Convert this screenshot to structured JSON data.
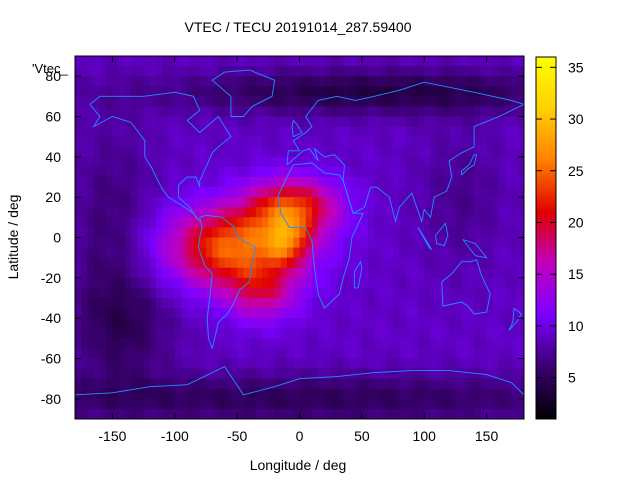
{
  "chart_data": {
    "type": "heatmap",
    "title": "VTEC / TECU 20191014_287.59400",
    "xlabel": "Longitude / deg",
    "ylabel": "Latitude / deg",
    "legend_label": "'Vtec_",
    "xlim": [
      -180,
      180
    ],
    "ylim": [
      -90,
      90
    ],
    "x_ticks": [
      -150,
      -100,
      -50,
      0,
      50,
      100,
      150
    ],
    "y_ticks": [
      -80,
      -60,
      -40,
      -20,
      0,
      20,
      40,
      60,
      80
    ],
    "colorbar": {
      "range": [
        1,
        36
      ],
      "ticks": [
        5,
        10,
        15,
        20,
        25,
        30,
        35
      ],
      "stops": [
        "#000000",
        "#3a0070",
        "#7a00ff",
        "#c000c0",
        "#e00000",
        "#ff8000",
        "#ffd000",
        "#ffff00"
      ]
    },
    "field": {
      "grid_step_deg": 5,
      "background_tecu": 9,
      "anomalies": [
        {
          "name": "equatorial-anomaly-south-america",
          "lon": -52,
          "lat": -5,
          "sigma_lon": 38,
          "sigma_lat": 14,
          "tecu": 16
        },
        {
          "name": "anomaly-africa-north",
          "lon": -5,
          "lat": 15,
          "sigma_lon": 25,
          "sigma_lat": 10,
          "tecu": 13
        },
        {
          "name": "anomaly-peak",
          "lon": -10,
          "lat": -2,
          "sigma_lon": 12,
          "sigma_lat": 8,
          "tecu": 8
        },
        {
          "name": "anomaly-south-atlantic",
          "lon": -30,
          "lat": -28,
          "sigma_lon": 20,
          "sigma_lat": 10,
          "tecu": 7
        },
        {
          "name": "pacific-low",
          "lon": -150,
          "lat": 0,
          "sigma_lon": 25,
          "sigma_lat": 40,
          "tecu": -3
        },
        {
          "name": "north-polar-low",
          "lon": 60,
          "lat": 72,
          "sigma_lon": 120,
          "sigma_lat": 8,
          "tecu": -5
        },
        {
          "name": "south-polar-low",
          "lon": 0,
          "lat": -80,
          "sigma_lon": 200,
          "sigma_lat": 9,
          "tecu": -4
        },
        {
          "name": "south-pacific-low",
          "lon": -140,
          "lat": -45,
          "sigma_lon": 30,
          "sigma_lat": 18,
          "tecu": -3
        },
        {
          "name": "east-asia-low",
          "lon": 130,
          "lat": 20,
          "sigma_lon": 25,
          "sigma_lat": 25,
          "tecu": -2
        }
      ]
    },
    "coastlines": [
      {
        "name": "south-america",
        "points": [
          [
            -80,
            10
          ],
          [
            -75,
            11
          ],
          [
            -62,
            10
          ],
          [
            -52,
            5
          ],
          [
            -50,
            0
          ],
          [
            -35,
            -5
          ],
          [
            -38,
            -13
          ],
          [
            -40,
            -22
          ],
          [
            -48,
            -26
          ],
          [
            -53,
            -33
          ],
          [
            -58,
            -38
          ],
          [
            -65,
            -42
          ],
          [
            -68,
            -50
          ],
          [
            -70,
            -55
          ],
          [
            -73,
            -50
          ],
          [
            -74,
            -40
          ],
          [
            -72,
            -30
          ],
          [
            -70,
            -18
          ],
          [
            -76,
            -14
          ],
          [
            -81,
            -5
          ],
          [
            -80,
            0
          ],
          [
            -78,
            5
          ],
          [
            -80,
            10
          ]
        ]
      },
      {
        "name": "north-america",
        "points": [
          [
            -168,
            66
          ],
          [
            -160,
            70
          ],
          [
            -140,
            70
          ],
          [
            -125,
            70
          ],
          [
            -100,
            72
          ],
          [
            -85,
            70
          ],
          [
            -80,
            63
          ],
          [
            -90,
            58
          ],
          [
            -80,
            52
          ],
          [
            -65,
            60
          ],
          [
            -55,
            50
          ],
          [
            -65,
            45
          ],
          [
            -70,
            42
          ],
          [
            -75,
            35
          ],
          [
            -80,
            28
          ],
          [
            -80,
            25
          ],
          [
            -83,
            30
          ],
          [
            -90,
            30
          ],
          [
            -97,
            26
          ],
          [
            -97,
            20
          ],
          [
            -88,
            15
          ],
          [
            -83,
            10
          ],
          [
            -80,
            8
          ],
          [
            -85,
            12
          ],
          [
            -92,
            15
          ],
          [
            -105,
            20
          ],
          [
            -110,
            24
          ],
          [
            -115,
            30
          ],
          [
            -118,
            34
          ],
          [
            -124,
            40
          ],
          [
            -124,
            48
          ],
          [
            -135,
            57
          ],
          [
            -150,
            60
          ],
          [
            -165,
            55
          ],
          [
            -160,
            60
          ],
          [
            -168,
            66
          ]
        ]
      },
      {
        "name": "greenland",
        "points": [
          [
            -55,
            60
          ],
          [
            -45,
            60
          ],
          [
            -38,
            65
          ],
          [
            -22,
            70
          ],
          [
            -20,
            78
          ],
          [
            -40,
            83
          ],
          [
            -60,
            82
          ],
          [
            -70,
            78
          ],
          [
            -55,
            70
          ],
          [
            -55,
            60
          ]
        ]
      },
      {
        "name": "africa",
        "points": [
          [
            -17,
            21
          ],
          [
            -10,
            30
          ],
          [
            -5,
            36
          ],
          [
            10,
            37
          ],
          [
            20,
            32
          ],
          [
            32,
            31
          ],
          [
            35,
            28
          ],
          [
            43,
            12
          ],
          [
            51,
            12
          ],
          [
            42,
            0
          ],
          [
            40,
            -10
          ],
          [
            35,
            -20
          ],
          [
            32,
            -28
          ],
          [
            20,
            -35
          ],
          [
            15,
            -28
          ],
          [
            12,
            -15
          ],
          [
            10,
            -2
          ],
          [
            5,
            5
          ],
          [
            -8,
            5
          ],
          [
            -15,
            12
          ],
          [
            -17,
            21
          ]
        ]
      },
      {
        "name": "europe-asia",
        "points": [
          [
            -10,
            36
          ],
          [
            -9,
            43
          ],
          [
            0,
            43
          ],
          [
            -5,
            48
          ],
          [
            5,
            52
          ],
          [
            10,
            55
          ],
          [
            5,
            60
          ],
          [
            15,
            68
          ],
          [
            30,
            70
          ],
          [
            45,
            68
          ],
          [
            60,
            70
          ],
          [
            80,
            73
          ],
          [
            100,
            77
          ],
          [
            140,
            72
          ],
          [
            170,
            68
          ],
          [
            180,
            66
          ],
          [
            160,
            60
          ],
          [
            140,
            55
          ],
          [
            140,
            45
          ],
          [
            130,
            42
          ],
          [
            120,
            38
          ],
          [
            122,
            30
          ],
          [
            118,
            23
          ],
          [
            108,
            20
          ],
          [
            105,
            10
          ],
          [
            100,
            14
          ],
          [
            98,
            8
          ],
          [
            90,
            22
          ],
          [
            80,
            15
          ],
          [
            77,
            8
          ],
          [
            72,
            20
          ],
          [
            62,
            25
          ],
          [
            57,
            25
          ],
          [
            52,
            15
          ],
          [
            43,
            12
          ],
          [
            35,
            28
          ],
          [
            36,
            36
          ],
          [
            28,
            41
          ],
          [
            20,
            40
          ],
          [
            12,
            44
          ],
          [
            15,
            38
          ],
          [
            8,
            44
          ],
          [
            3,
            43
          ],
          [
            -10,
            36
          ]
        ]
      },
      {
        "name": "australia",
        "points": [
          [
            114,
            -22
          ],
          [
            122,
            -18
          ],
          [
            130,
            -12
          ],
          [
            137,
            -12
          ],
          [
            142,
            -11
          ],
          [
            146,
            -19
          ],
          [
            153,
            -28
          ],
          [
            150,
            -37
          ],
          [
            140,
            -38
          ],
          [
            135,
            -34
          ],
          [
            130,
            -32
          ],
          [
            115,
            -34
          ],
          [
            114,
            -22
          ]
        ]
      },
      {
        "name": "antarctica",
        "points": [
          [
            -180,
            -78
          ],
          [
            -150,
            -77
          ],
          [
            -120,
            -74
          ],
          [
            -90,
            -73
          ],
          [
            -60,
            -64
          ],
          [
            -45,
            -78
          ],
          [
            -20,
            -74
          ],
          [
            0,
            -70
          ],
          [
            30,
            -69
          ],
          [
            60,
            -67
          ],
          [
            90,
            -66
          ],
          [
            120,
            -66
          ],
          [
            150,
            -68
          ],
          [
            170,
            -72
          ],
          [
            180,
            -78
          ]
        ]
      },
      {
        "name": "madagascar",
        "points": [
          [
            44,
            -25
          ],
          [
            47,
            -25
          ],
          [
            50,
            -15
          ],
          [
            49,
            -12
          ],
          [
            44,
            -17
          ],
          [
            44,
            -25
          ]
        ]
      },
      {
        "name": "uk",
        "points": [
          [
            -5,
            50
          ],
          [
            2,
            52
          ],
          [
            -2,
            56
          ],
          [
            -5,
            58
          ],
          [
            -6,
            55
          ],
          [
            -5,
            50
          ]
        ]
      },
      {
        "name": "japan",
        "points": [
          [
            130,
            31
          ],
          [
            135,
            34
          ],
          [
            140,
            36
          ],
          [
            142,
            41
          ],
          [
            140,
            41
          ],
          [
            136,
            36
          ],
          [
            130,
            33
          ],
          [
            130,
            31
          ]
        ]
      },
      {
        "name": "indonesia",
        "points": [
          [
            95,
            5
          ],
          [
            104,
            -5
          ],
          [
            106,
            -6
          ],
          [
            101,
            -1
          ],
          [
            95,
            5
          ]
        ]
      },
      {
        "name": "borneo",
        "points": [
          [
            109,
            1
          ],
          [
            117,
            7
          ],
          [
            119,
            1
          ],
          [
            116,
            -4
          ],
          [
            110,
            -3
          ],
          [
            109,
            1
          ]
        ]
      },
      {
        "name": "new-guinea",
        "points": [
          [
            131,
            -1
          ],
          [
            141,
            -3
          ],
          [
            150,
            -10
          ],
          [
            141,
            -9
          ],
          [
            136,
            -5
          ],
          [
            131,
            -1
          ]
        ]
      },
      {
        "name": "new-zealand",
        "points": [
          [
            172,
            -35
          ],
          [
            178,
            -38
          ],
          [
            174,
            -42
          ],
          [
            168,
            -46
          ],
          [
            171,
            -42
          ],
          [
            172,
            -35
          ]
        ]
      }
    ]
  }
}
